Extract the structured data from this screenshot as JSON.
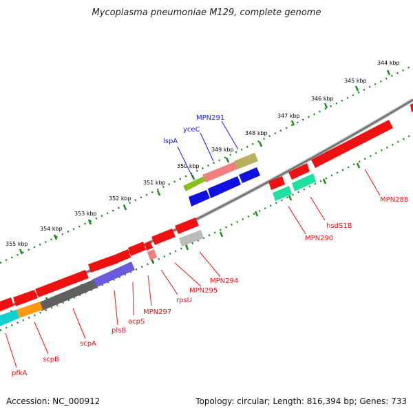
{
  "title": "Mycoplasma pneumoniae M129, complete genome",
  "footer": {
    "accession": "Accession: NC_000912",
    "summary": "Topology: circular; Length: 816,394 bp; Genes: 733"
  },
  "kbp_ticks": [
    "344 kbp",
    "345 kbp",
    "346 kbp",
    "347 kbp",
    "348 kbp",
    "349 kbp",
    "350 kbp",
    "351 kbp",
    "352 kbp",
    "353 kbp",
    "354 kbp",
    "355 kbp"
  ],
  "colors": {
    "red": "#ee1111",
    "blue": "#1b1be0",
    "tick_green": "#1a8a1a",
    "axis_gray": "#7a7a7a"
  },
  "labels_top": [
    "MPN291",
    "yceC",
    "lspA"
  ],
  "labels_bottom": [
    "MPN288",
    "hsdS1B",
    "MPN290",
    "MPN294",
    "MPN295",
    "rpsU",
    "MPN297",
    "acpS",
    "plsB",
    "scpA",
    "scpB",
    "pfkA"
  ]
}
